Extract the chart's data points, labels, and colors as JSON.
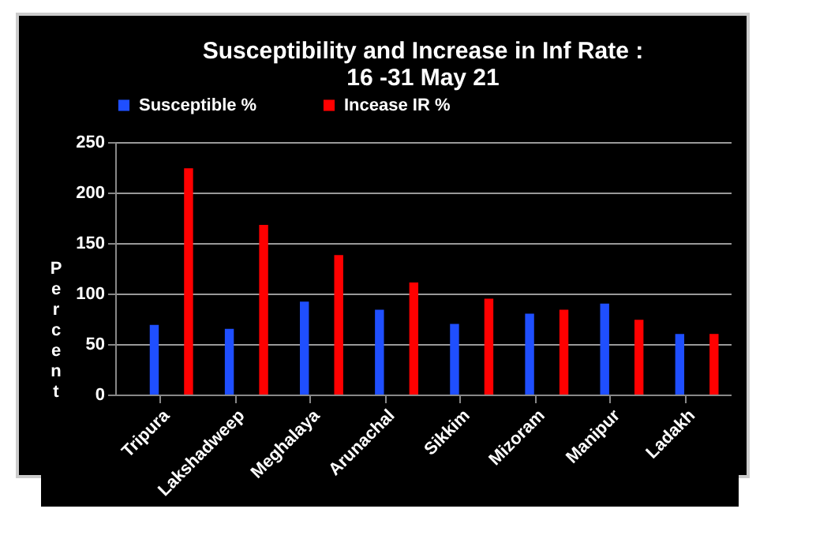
{
  "chart_data": {
    "type": "bar",
    "title": [
      "Susceptibility and Increase in Inf Rate :",
      "16 -31 May 21"
    ],
    "ylabel": "Percent",
    "categories": [
      "Tripura",
      "Lakshadweep",
      "Meghalaya",
      "Arunachal",
      "Sikkim",
      "Mizoram",
      "Manipur",
      "Ladakh"
    ],
    "series": [
      {
        "name": "Susceptible %",
        "color": "#1f4fff",
        "values": [
          69,
          65,
          92,
          84,
          70,
          80,
          90,
          60
        ]
      },
      {
        "name": "Incease IR %",
        "color": "#ff0000",
        "values": [
          224,
          168,
          138,
          111,
          95,
          84,
          74,
          60
        ]
      }
    ],
    "ylim": [
      0,
      250
    ],
    "yticks": [
      0,
      50,
      100,
      150,
      200,
      250
    ],
    "grid": "y",
    "legend": "top"
  }
}
